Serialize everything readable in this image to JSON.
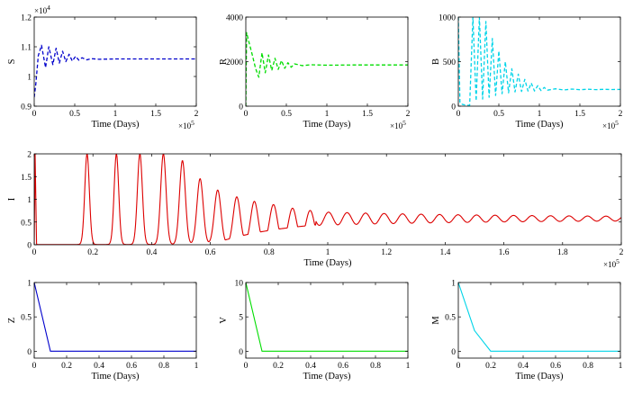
{
  "chart_data": [
    {
      "id": "S",
      "type": "line",
      "ylabel": "S",
      "xlabel": "Time (Days)",
      "x_multiplier": "×10",
      "x_multiplier_exp": "5",
      "y_multiplier": "×10",
      "y_multiplier_exp": "4",
      "color": "#0000cc",
      "dash": true,
      "xlim": [
        0,
        2
      ],
      "ylim": [
        0.9,
        1.2
      ],
      "xticks": [
        "0",
        "0.5",
        "1",
        "1.5",
        "2"
      ],
      "yticks": [
        "0.9",
        "1",
        "1.1",
        "1.2"
      ],
      "series": [
        {
          "x": [
            0,
            0.02,
            0.05,
            0.09,
            0.14,
            0.18,
            0.23,
            0.27,
            0.31,
            0.35,
            0.39,
            0.43,
            0.47,
            0.51,
            0.55,
            0.59,
            0.65,
            0.7,
            0.8,
            1.0,
            1.2,
            1.5,
            1.8,
            2.0
          ],
          "y": [
            0.93,
            0.975,
            1.07,
            1.105,
            1.03,
            1.1,
            1.04,
            1.095,
            1.045,
            1.085,
            1.05,
            1.075,
            1.052,
            1.068,
            1.055,
            1.063,
            1.056,
            1.06,
            1.058,
            1.059,
            1.059,
            1.059,
            1.059,
            1.059
          ]
        }
      ]
    },
    {
      "id": "R",
      "type": "line",
      "ylabel": "R",
      "xlabel": "Time (Days)",
      "x_multiplier": "×10",
      "x_multiplier_exp": "5",
      "color": "#00dd00",
      "dash": true,
      "xlim": [
        0,
        2
      ],
      "ylim": [
        0,
        4000
      ],
      "xticks": [
        "0",
        "0.5",
        "1",
        "1.5",
        "2"
      ],
      "yticks": [
        "0",
        "2000",
        "4000"
      ],
      "series": [
        {
          "x": [
            0,
            0.01,
            0.03,
            0.08,
            0.12,
            0.16,
            0.2,
            0.24,
            0.28,
            0.32,
            0.36,
            0.4,
            0.44,
            0.48,
            0.52,
            0.56,
            0.6,
            0.7,
            0.8,
            1.0,
            1.3,
            1.6,
            2.0
          ],
          "y": [
            0,
            3300,
            3000,
            2300,
            1700,
            1300,
            2400,
            1500,
            2300,
            1600,
            2150,
            1650,
            2050,
            1700,
            1950,
            1750,
            1900,
            1820,
            1860,
            1840,
            1850,
            1850,
            1850
          ]
        }
      ]
    },
    {
      "id": "B",
      "type": "line",
      "ylabel": "B",
      "xlabel": "Time (Days)",
      "x_multiplier": "×10",
      "x_multiplier_exp": "5",
      "color": "#00d4e8",
      "dash": true,
      "xlim": [
        0,
        2
      ],
      "ylim": [
        0,
        1000
      ],
      "xticks": [
        "0",
        "0.5",
        "1",
        "1.5",
        "2"
      ],
      "yticks": [
        "0",
        "500",
        "1000"
      ],
      "series": [
        {
          "x": [
            0,
            0.02,
            0.05,
            0.1,
            0.14,
            0.18,
            0.22,
            0.26,
            0.3,
            0.34,
            0.38,
            0.42,
            0.46,
            0.5,
            0.54,
            0.58,
            0.62,
            0.66,
            0.7,
            0.74,
            0.78,
            0.82,
            0.86,
            0.9,
            0.94,
            0.98,
            1.02,
            1.06,
            1.1,
            1.2,
            1.3,
            1.4,
            1.5,
            1.6,
            1.7,
            1.8,
            1.9,
            2.0
          ],
          "y": [
            1000,
            40,
            20,
            10,
            10,
            1000,
            60,
            1000,
            80,
            950,
            100,
            760,
            120,
            620,
            140,
            500,
            150,
            420,
            160,
            360,
            165,
            300,
            170,
            260,
            170,
            230,
            175,
            210,
            180,
            195,
            182,
            192,
            185,
            190,
            186,
            189,
            187,
            188
          ]
        }
      ]
    },
    {
      "id": "I",
      "type": "line",
      "ylabel": "I",
      "xlabel": "Time (Days)",
      "x_multiplier": "×10",
      "x_multiplier_exp": "5",
      "color": "#dd0000",
      "dash": false,
      "xlim": [
        0,
        2
      ],
      "ylim": [
        0,
        2
      ],
      "xticks": [
        "0",
        "0.2",
        "0.4",
        "0.6",
        "0.8",
        "1",
        "1.2",
        "1.4",
        "1.6",
        "1.8",
        "2"
      ],
      "yticks": [
        "0",
        "0.5",
        "1",
        "1.5",
        "2"
      ],
      "series": [
        {
          "x": [],
          "y": []
        }
      ]
    },
    {
      "id": "Z",
      "type": "line",
      "ylabel": "Z",
      "xlabel": "Time (Days)",
      "color": "#0000cc",
      "dash": false,
      "xlim": [
        0,
        1
      ],
      "ylim": [
        -0.1,
        1
      ],
      "xticks": [
        "0",
        "0.2",
        "0.4",
        "0.6",
        "0.8",
        "1"
      ],
      "yticks": [
        "0",
        "0.5",
        "1"
      ],
      "series": [
        {
          "x": [
            0,
            0.1,
            1.0
          ],
          "y": [
            1,
            0,
            0
          ]
        }
      ]
    },
    {
      "id": "V",
      "type": "line",
      "ylabel": "V",
      "xlabel": "Time (Days)",
      "color": "#00dd00",
      "dash": false,
      "xlim": [
        0,
        1
      ],
      "ylim": [
        -1,
        10
      ],
      "xticks": [
        "0",
        "0.2",
        "0.4",
        "0.6",
        "0.8",
        "1"
      ],
      "yticks": [
        "0",
        "5",
        "10"
      ],
      "series": [
        {
          "x": [
            0,
            0.1,
            1.0
          ],
          "y": [
            10,
            0,
            0
          ]
        }
      ]
    },
    {
      "id": "M",
      "type": "line",
      "ylabel": "M",
      "xlabel": "Time (Days)",
      "color": "#00d4e8",
      "dash": false,
      "xlim": [
        0,
        1
      ],
      "ylim": [
        -0.1,
        1
      ],
      "xticks": [
        "0",
        "0.2",
        "0.4",
        "0.6",
        "0.8",
        "1"
      ],
      "yticks": [
        "0",
        "0.5",
        "1"
      ],
      "series": [
        {
          "x": [
            0,
            0.1,
            0.2,
            1.0
          ],
          "y": [
            1,
            0.3,
            0,
            0
          ]
        }
      ]
    }
  ]
}
